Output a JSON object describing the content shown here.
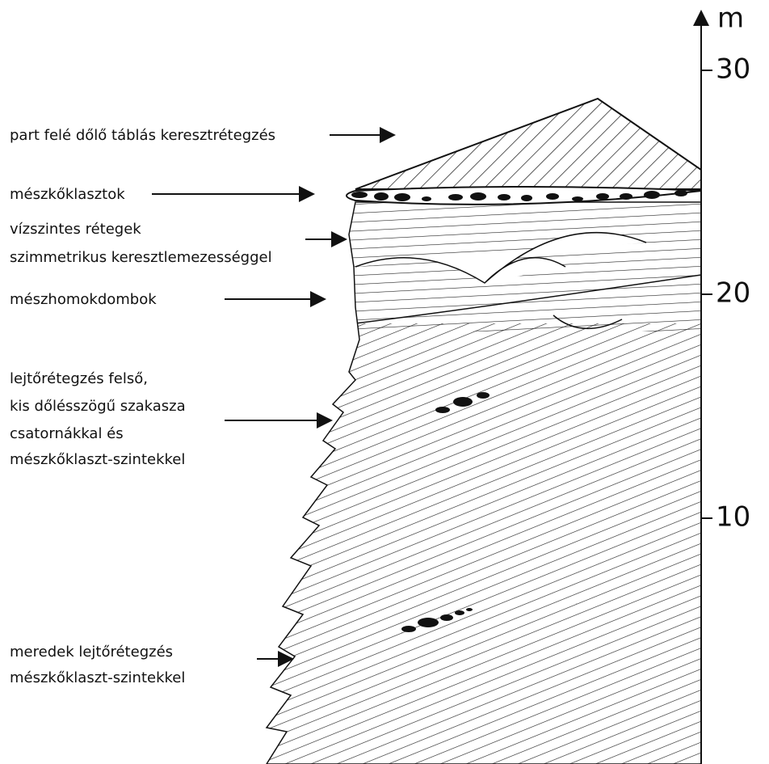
{
  "axis": {
    "unit": "m",
    "ticks": [
      10,
      20,
      30
    ]
  },
  "labels": [
    {
      "lines": [
        "part felé dőlő táblás keresztrétegzés"
      ]
    },
    {
      "lines": [
        "mészkőklasztok"
      ]
    },
    {
      "lines": [
        "vízszintes rétegek",
        "szimmetrikus keresztlemezességgel"
      ]
    },
    {
      "lines": [
        "mészhomokdombok"
      ]
    },
    {
      "lines": [
        "lejtőrétegzés felső,",
        "kis dőlésszögű szakasza",
        "csatornákkal és",
        "mészkőklaszt-szintekkel"
      ]
    },
    {
      "lines": [
        "meredek lejtőrétegzés",
        "mészkőklaszt-szintekkel"
      ]
    }
  ]
}
